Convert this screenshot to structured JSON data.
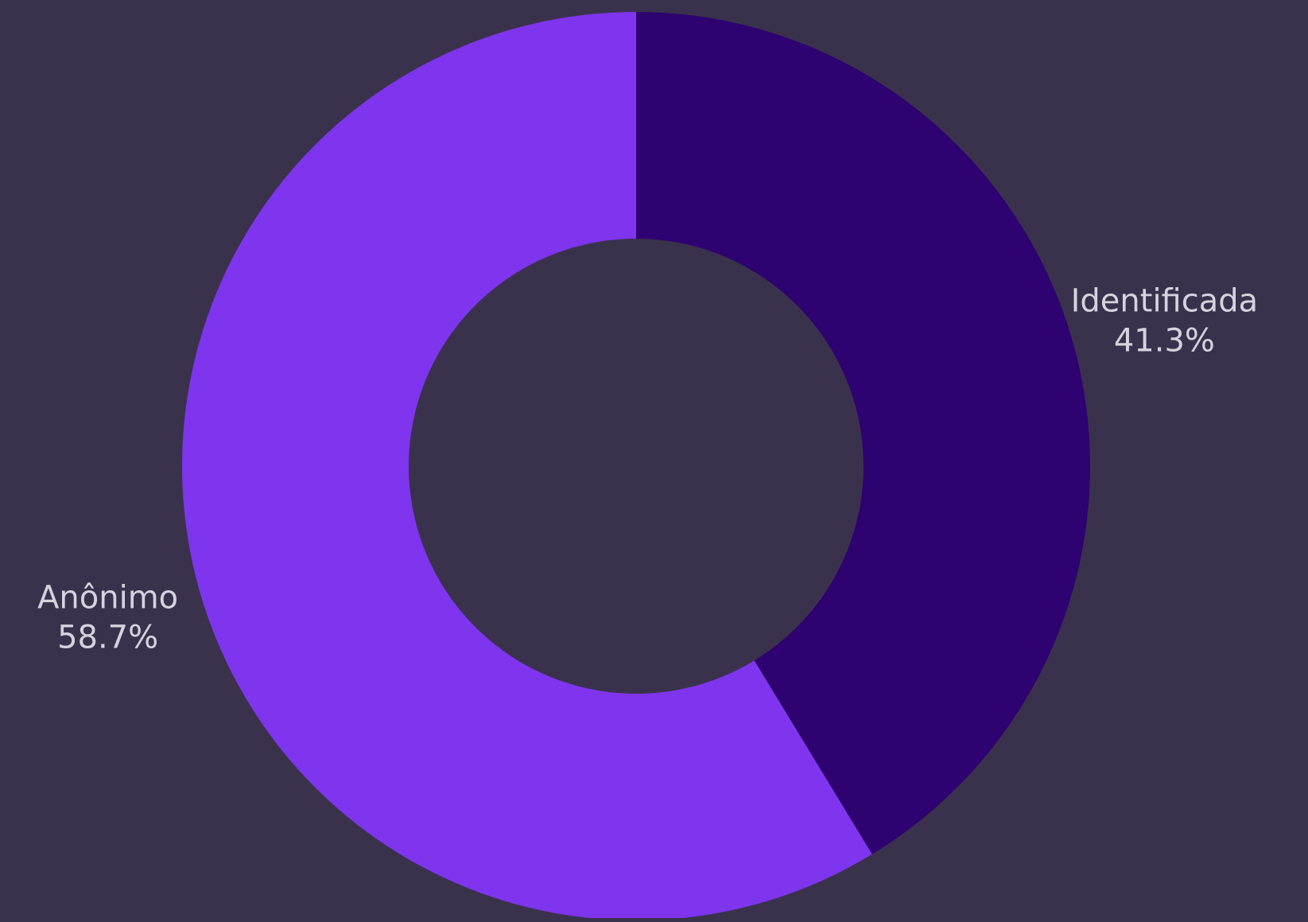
{
  "background": "#3a324d",
  "chart_data": {
    "type": "pie",
    "variant": "donut",
    "title": "",
    "start": "top, clockwise",
    "slices": [
      {
        "label": "Identificada",
        "value": 41.3,
        "value_label": "41.3%",
        "color": "#2e0271"
      },
      {
        "label": "Anônimo",
        "value": 58.7,
        "value_label": "58.7%",
        "color": "#7f35ee"
      }
    ],
    "label_position": "outside"
  }
}
